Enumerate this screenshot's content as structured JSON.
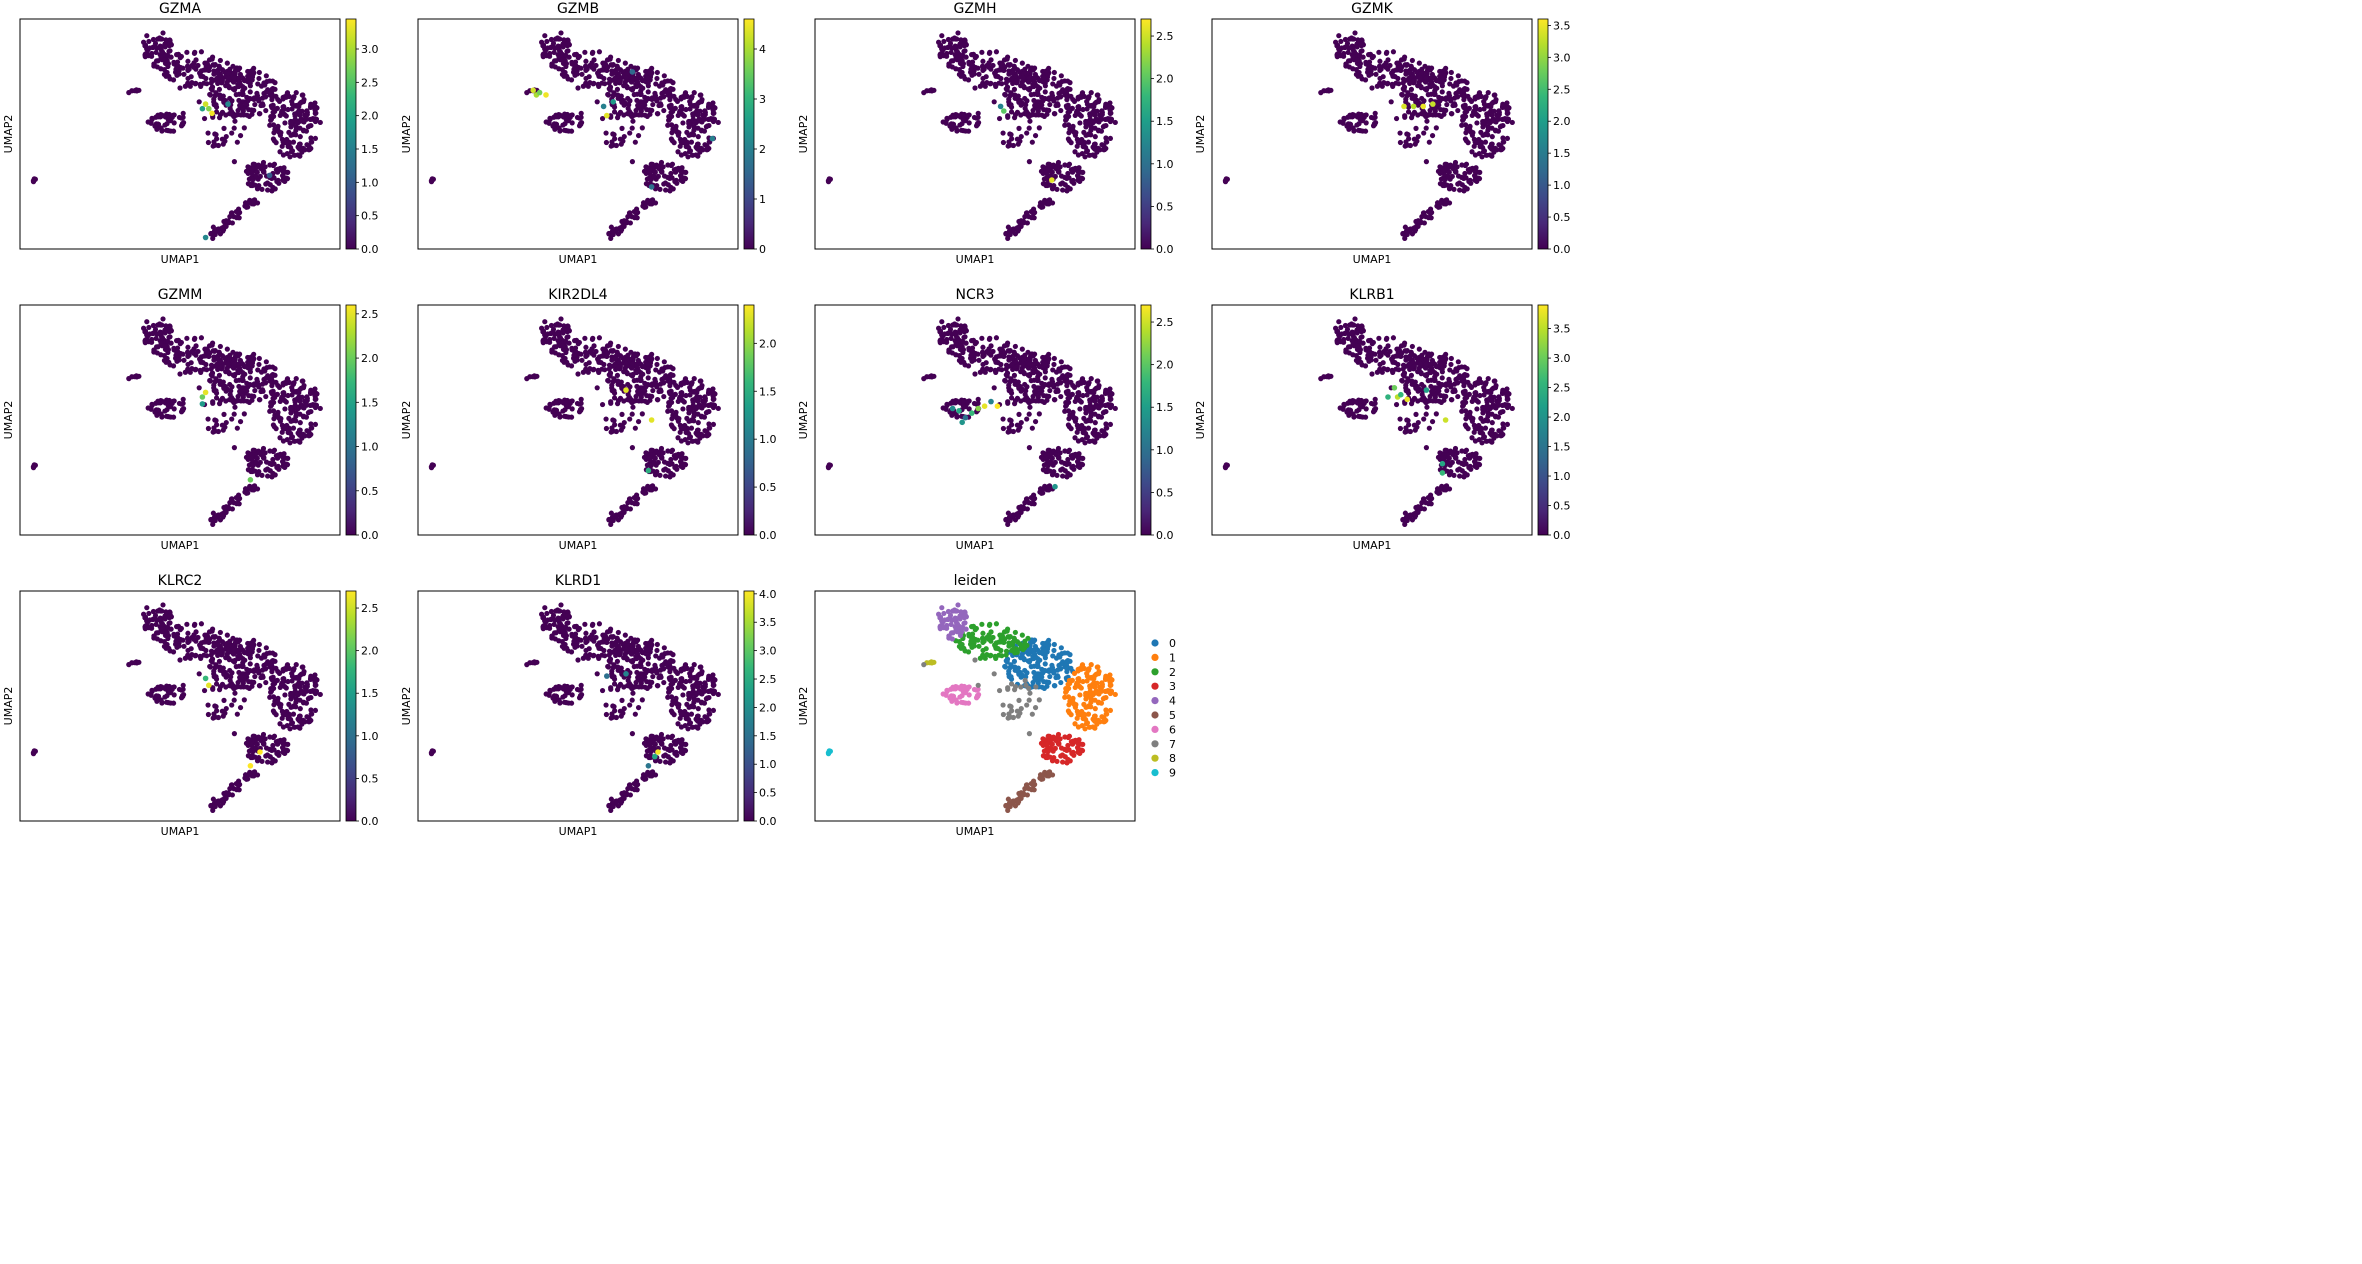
{
  "figure": {
    "axis_xlabel": "UMAP1",
    "axis_ylabel": "UMAP2"
  },
  "colors": {
    "viridis": [
      "#440154",
      "#482878",
      "#3e4989",
      "#31688e",
      "#26828e",
      "#1f9e89",
      "#35b779",
      "#6ece58",
      "#b5de2b",
      "#fde725"
    ],
    "background_points": "#440154",
    "leiden": [
      "#1f77b4",
      "#ff7f0e",
      "#2ca02c",
      "#d62728",
      "#9467bd",
      "#8c564b",
      "#e377c2",
      "#7f7f7f",
      "#bcbd22",
      "#17becf"
    ]
  },
  "chart_data": [
    {
      "type": "scatter",
      "title": "GZMA",
      "xlabel": "UMAP1",
      "ylabel": "UMAP2",
      "colorbar_range": [
        0,
        3.45
      ],
      "colorbar_ticks": [
        "0.0",
        "0.5",
        "1.0",
        "1.5",
        "2.0",
        "2.5",
        "3.0"
      ],
      "highlights": [
        {
          "x": 0.57,
          "y": 0.39,
          "v": 2.0
        },
        {
          "x": 0.58,
          "y": 0.37,
          "v": 3.2
        },
        {
          "x": 0.59,
          "y": 0.39,
          "v": 2.8
        },
        {
          "x": 0.6,
          "y": 0.41,
          "v": 3.4
        },
        {
          "x": 0.65,
          "y": 0.37,
          "v": 1.6
        },
        {
          "x": 0.78,
          "y": 0.68,
          "v": 1.0
        },
        {
          "x": 0.58,
          "y": 0.95,
          "v": 1.6
        }
      ]
    },
    {
      "type": "scatter",
      "title": "GZMB",
      "xlabel": "UMAP1",
      "ylabel": "UMAP2",
      "colorbar_range": [
        0,
        4.6
      ],
      "colorbar_ticks": [
        "0",
        "1",
        "2",
        "3",
        "4"
      ],
      "highlights": [
        {
          "x": 0.36,
          "y": 0.31,
          "v": 4.3
        },
        {
          "x": 0.37,
          "y": 0.33,
          "v": 4.0
        },
        {
          "x": 0.38,
          "y": 0.32,
          "v": 3.6
        },
        {
          "x": 0.4,
          "y": 0.33,
          "v": 4.5
        },
        {
          "x": 0.58,
          "y": 0.38,
          "v": 2.0
        },
        {
          "x": 0.59,
          "y": 0.42,
          "v": 4.4
        },
        {
          "x": 0.61,
          "y": 0.36,
          "v": 2.5
        },
        {
          "x": 0.67,
          "y": 0.23,
          "v": 1.6
        },
        {
          "x": 0.73,
          "y": 0.73,
          "v": 1.7
        },
        {
          "x": 0.92,
          "y": 0.52,
          "v": 2.0
        }
      ]
    },
    {
      "type": "scatter",
      "title": "GZMH",
      "xlabel": "UMAP1",
      "ylabel": "UMAP2",
      "colorbar_range": [
        0,
        2.7
      ],
      "colorbar_ticks": [
        "0.0",
        "0.5",
        "1.0",
        "1.5",
        "2.0",
        "2.5"
      ],
      "highlights": [
        {
          "x": 0.58,
          "y": 0.38,
          "v": 1.2
        },
        {
          "x": 0.59,
          "y": 0.4,
          "v": 2.0
        },
        {
          "x": 0.74,
          "y": 0.7,
          "v": 2.6
        }
      ]
    },
    {
      "type": "scatter",
      "title": "GZMK",
      "xlabel": "UMAP1",
      "ylabel": "UMAP2",
      "colorbar_range": [
        0,
        3.6
      ],
      "colorbar_ticks": [
        "0.0",
        "0.5",
        "1.0",
        "1.5",
        "2.0",
        "2.5",
        "3.0",
        "3.5"
      ],
      "highlights": [
        {
          "x": 0.6,
          "y": 0.38,
          "v": 3.4
        },
        {
          "x": 0.63,
          "y": 0.38,
          "v": 3.2
        },
        {
          "x": 0.66,
          "y": 0.38,
          "v": 3.5
        },
        {
          "x": 0.69,
          "y": 0.37,
          "v": 3.3
        }
      ]
    },
    {
      "type": "scatter",
      "title": "GZMM",
      "xlabel": "UMAP1",
      "ylabel": "UMAP2",
      "colorbar_range": [
        0,
        2.6
      ],
      "colorbar_ticks": [
        "0.0",
        "0.5",
        "1.0",
        "1.5",
        "2.0",
        "2.5"
      ],
      "highlights": [
        {
          "x": 0.57,
          "y": 0.4,
          "v": 2.0
        },
        {
          "x": 0.58,
          "y": 0.38,
          "v": 2.5
        },
        {
          "x": 0.57,
          "y": 0.43,
          "v": 1.4
        },
        {
          "x": 0.72,
          "y": 0.76,
          "v": 2.0
        }
      ]
    },
    {
      "type": "scatter",
      "title": "KIR2DL4",
      "xlabel": "UMAP1",
      "ylabel": "UMAP2",
      "colorbar_range": [
        0,
        2.4
      ],
      "colorbar_ticks": [
        "0.0",
        "0.5",
        "1.0",
        "1.5",
        "2.0"
      ],
      "highlights": [
        {
          "x": 0.65,
          "y": 0.37,
          "v": 2.3
        },
        {
          "x": 0.73,
          "y": 0.5,
          "v": 2.3
        },
        {
          "x": 0.72,
          "y": 0.72,
          "v": 1.5
        }
      ]
    },
    {
      "type": "scatter",
      "title": "NCR3",
      "xlabel": "UMAP1",
      "ylabel": "UMAP2",
      "colorbar_range": [
        0,
        2.7
      ],
      "colorbar_ticks": [
        "0.0",
        "0.5",
        "1.0",
        "1.5",
        "2.0",
        "2.5"
      ],
      "highlights": [
        {
          "x": 0.43,
          "y": 0.45,
          "v": 1.3
        },
        {
          "x": 0.45,
          "y": 0.46,
          "v": 1.6
        },
        {
          "x": 0.47,
          "y": 0.49,
          "v": 1.0
        },
        {
          "x": 0.46,
          "y": 0.51,
          "v": 1.4
        },
        {
          "x": 0.49,
          "y": 0.47,
          "v": 1.8
        },
        {
          "x": 0.51,
          "y": 0.45,
          "v": 2.2
        },
        {
          "x": 0.53,
          "y": 0.44,
          "v": 2.6
        },
        {
          "x": 0.55,
          "y": 0.42,
          "v": 1.2
        },
        {
          "x": 0.57,
          "y": 0.44,
          "v": 2.7
        },
        {
          "x": 0.75,
          "y": 0.79,
          "v": 1.4
        }
      ]
    },
    {
      "type": "scatter",
      "title": "KLRB1",
      "xlabel": "UMAP1",
      "ylabel": "UMAP2",
      "colorbar_range": [
        0,
        3.9
      ],
      "colorbar_ticks": [
        "0.0",
        "0.5",
        "1.0",
        "1.5",
        "2.0",
        "2.5",
        "3.0",
        "3.5"
      ],
      "highlights": [
        {
          "x": 0.55,
          "y": 0.4,
          "v": 2.5
        },
        {
          "x": 0.57,
          "y": 0.36,
          "v": 3.0
        },
        {
          "x": 0.58,
          "y": 0.4,
          "v": 3.5
        },
        {
          "x": 0.59,
          "y": 0.39,
          "v": 2.6
        },
        {
          "x": 0.61,
          "y": 0.41,
          "v": 3.8
        },
        {
          "x": 0.67,
          "y": 0.37,
          "v": 2.2
        },
        {
          "x": 0.73,
          "y": 0.5,
          "v": 3.6
        },
        {
          "x": 0.72,
          "y": 0.69,
          "v": 2.3
        },
        {
          "x": 0.72,
          "y": 0.73,
          "v": 2.6
        }
      ]
    },
    {
      "type": "scatter",
      "title": "KLRC2",
      "xlabel": "UMAP1",
      "ylabel": "UMAP2",
      "colorbar_range": [
        0,
        2.7
      ],
      "colorbar_ticks": [
        "0.0",
        "0.5",
        "1.0",
        "1.5",
        "2.0",
        "2.5"
      ],
      "highlights": [
        {
          "x": 0.58,
          "y": 0.38,
          "v": 1.8
        },
        {
          "x": 0.59,
          "y": 0.41,
          "v": 2.6
        },
        {
          "x": 0.75,
          "y": 0.7,
          "v": 2.7
        },
        {
          "x": 0.72,
          "y": 0.76,
          "v": 2.7
        }
      ]
    },
    {
      "type": "scatter",
      "title": "KLRD1",
      "xlabel": "UMAP1",
      "ylabel": "UMAP2",
      "colorbar_range": [
        0,
        4.05
      ],
      "colorbar_ticks": [
        "0.0",
        "0.5",
        "1.0",
        "1.5",
        "2.0",
        "2.5",
        "3.0",
        "3.5",
        "4.0"
      ],
      "highlights": [
        {
          "x": 0.59,
          "y": 0.37,
          "v": 1.5
        },
        {
          "x": 0.65,
          "y": 0.36,
          "v": 1.8
        },
        {
          "x": 0.75,
          "y": 0.7,
          "v": 4.0
        },
        {
          "x": 0.74,
          "y": 0.72,
          "v": 2.4
        },
        {
          "x": 0.72,
          "y": 0.76,
          "v": 1.6
        }
      ]
    },
    {
      "type": "scatter",
      "title": "leiden",
      "xlabel": "UMAP1",
      "ylabel": "UMAP2",
      "legend": [
        "0",
        "1",
        "2",
        "3",
        "4",
        "5",
        "6",
        "7",
        "8",
        "9"
      ],
      "legend_position": "right"
    }
  ]
}
